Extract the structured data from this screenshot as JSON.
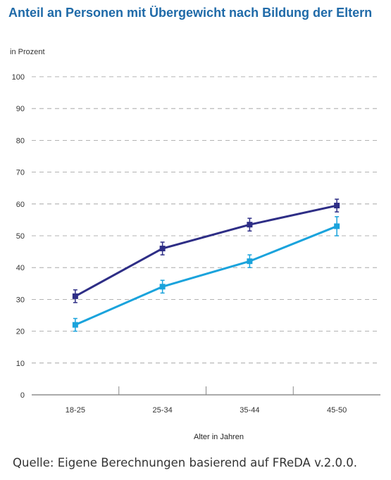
{
  "title": "Anteil an Personen mit Übergewicht nach Bildung der Eltern",
  "source": "Quelle: Eigene Berechnungen basierend auf FReDA v.2.0.0.",
  "chart_data": {
    "type": "line",
    "ylabel": "in Prozent",
    "xlabel": "Alter in Jahren",
    "categories": [
      "18-25",
      "25-34",
      "35-44",
      "45-50"
    ],
    "ylim": [
      0,
      100
    ],
    "yticks": [
      0,
      10,
      20,
      30,
      40,
      50,
      60,
      70,
      80,
      90,
      100
    ],
    "grid": true,
    "legend": "none",
    "series": [
      {
        "color": "#2e2e86",
        "values": [
          31,
          46,
          53.5,
          59.5
        ],
        "errors": [
          [
            29,
            33
          ],
          [
            44,
            48
          ],
          [
            51.5,
            55.5
          ],
          [
            57.5,
            61.5
          ]
        ]
      },
      {
        "color": "#1aa3dc",
        "values": [
          22,
          34,
          42,
          53
        ],
        "errors": [
          [
            20,
            24
          ],
          [
            32,
            36
          ],
          [
            40,
            44
          ],
          [
            50,
            56
          ]
        ]
      }
    ]
  }
}
